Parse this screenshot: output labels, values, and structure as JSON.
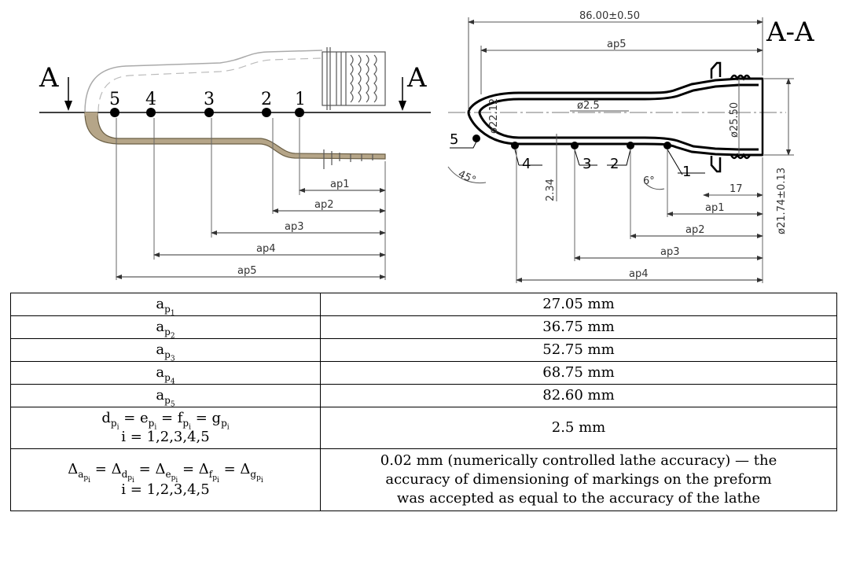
{
  "drawings": {
    "left_view": {
      "section_letter": "A",
      "points": [
        "1",
        "2",
        "3",
        "4",
        "5"
      ],
      "dims": [
        "ap1",
        "ap2",
        "ap3",
        "ap4",
        "ap5"
      ]
    },
    "right_view": {
      "section_title": "A-A",
      "overall_length": "86.00±0.50",
      "dims": [
        "ap5",
        "ap1",
        "ap2",
        "ap3",
        "ap4"
      ],
      "points": [
        "1",
        "2",
        "3",
        "4",
        "5"
      ],
      "hole_dia": "ø2.5",
      "inner_dia_1": "ø22.12",
      "inner_dia_2": "ø25.50",
      "outer_dia": "ø21.74±0.13",
      "angle_1": "45°",
      "angle_2": "6°",
      "wall": "2.34",
      "neck_len": "17"
    }
  },
  "table": {
    "values": [
      "27.05 mm",
      "36.75 mm",
      "52.75 mm",
      "68.75 mm",
      "82.60 mm"
    ],
    "index_range": "i = 1,2,3,4,5",
    "diam_value": "2.5 mm",
    "accuracy_lines": [
      "0.02 mm (numerically controlled lathe accuracy) — the",
      "accuracy of dimensioning of markings on the preform",
      "was accepted as equal to the accuracy of the lathe"
    ]
  }
}
